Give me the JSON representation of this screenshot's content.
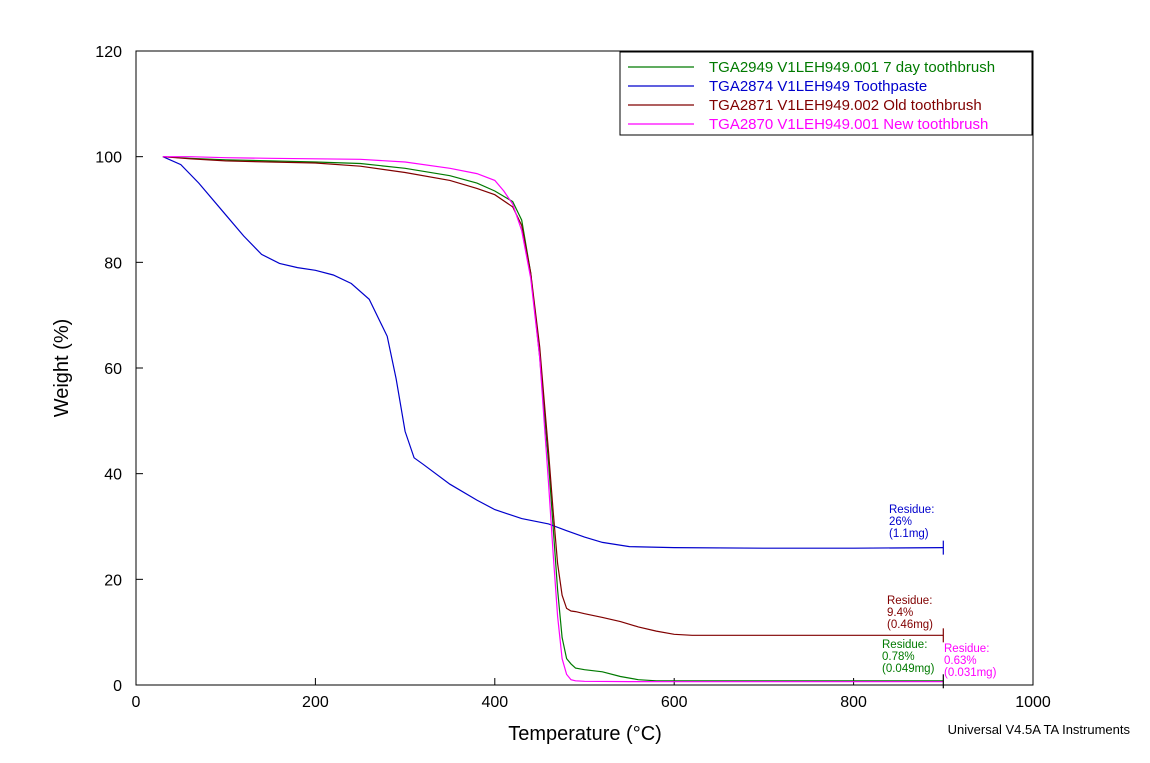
{
  "chart_data": {
    "type": "line",
    "xlabel": "Temperature (°C)",
    "ylabel": "Weight (%)",
    "xlim": [
      0,
      1000
    ],
    "ylim": [
      0,
      120
    ],
    "xticks": [
      0,
      200,
      400,
      600,
      800,
      1000
    ],
    "yticks": [
      0,
      20,
      40,
      60,
      80,
      100,
      120
    ],
    "grid": false,
    "legend_position": "top-right",
    "footer": "Universal V4.5A TA Instruments",
    "series": [
      {
        "name": "TGA2949 V1LEH949.001  7 day toothbrush",
        "color": "#007a00",
        "x": [
          30,
          60,
          100,
          150,
          200,
          250,
          300,
          350,
          380,
          400,
          420,
          430,
          440,
          450,
          455,
          460,
          465,
          470,
          475,
          480,
          485,
          490,
          500,
          520,
          540,
          560,
          580,
          600,
          700,
          800,
          900
        ],
        "y": [
          100,
          99.7,
          99.4,
          99.2,
          99.0,
          98.7,
          97.8,
          96.4,
          95.0,
          93.5,
          91.5,
          88,
          78,
          62,
          52,
          42,
          30,
          18,
          9,
          5,
          4,
          3.2,
          2.9,
          2.5,
          1.6,
          1.0,
          0.8,
          0.8,
          0.8,
          0.78,
          0.78
        ]
      },
      {
        "name": "TGA2874 V1LEH949  Toothpaste",
        "color": "#0000cc",
        "x": [
          30,
          50,
          70,
          100,
          120,
          140,
          160,
          180,
          200,
          220,
          240,
          260,
          280,
          290,
          300,
          310,
          320,
          350,
          380,
          400,
          430,
          460,
          480,
          500,
          520,
          550,
          600,
          700,
          800,
          900
        ],
        "y": [
          100,
          98.5,
          95,
          89,
          85,
          81.5,
          79.8,
          79,
          78.5,
          77.6,
          76,
          73,
          66,
          58,
          48,
          43,
          41.8,
          38,
          35,
          33.2,
          31.5,
          30.5,
          29.2,
          28,
          27,
          26.2,
          26.0,
          25.9,
          25.9,
          26
        ]
      },
      {
        "name": "TGA2871 V1LEH949.002  Old toothbrush",
        "color": "#800000",
        "x": [
          30,
          60,
          100,
          150,
          200,
          250,
          300,
          350,
          380,
          400,
          420,
          430,
          440,
          450,
          455,
          460,
          465,
          470,
          475,
          480,
          485,
          490,
          500,
          520,
          540,
          560,
          580,
          600,
          620,
          700,
          800,
          900
        ],
        "y": [
          100,
          99.6,
          99.2,
          99.0,
          98.8,
          98.2,
          97.0,
          95.5,
          94.0,
          92.8,
          90.5,
          87,
          78,
          64,
          54,
          44,
          33,
          23,
          17,
          14.5,
          14,
          13.9,
          13.5,
          12.8,
          12.0,
          11.0,
          10.2,
          9.6,
          9.4,
          9.4,
          9.4,
          9.4
        ]
      },
      {
        "name": "TGA2870 V1LEH949.001  New toothbrush",
        "color": "#ff00ff",
        "x": [
          30,
          60,
          100,
          150,
          200,
          250,
          300,
          350,
          380,
          400,
          410,
          420,
          430,
          440,
          450,
          455,
          460,
          465,
          470,
          475,
          480,
          485,
          490,
          500,
          550,
          600,
          700,
          800,
          900
        ],
        "y": [
          100,
          100,
          99.8,
          99.7,
          99.6,
          99.5,
          99.0,
          97.8,
          96.8,
          95.5,
          93.5,
          91,
          86,
          77,
          62,
          50,
          38,
          25,
          13,
          5,
          2,
          1,
          0.8,
          0.7,
          0.65,
          0.63,
          0.63,
          0.63,
          0.63
        ]
      }
    ],
    "annotations": [
      {
        "color": "#0000cc",
        "lines": [
          "Residue:",
          "26%",
          "(1.1mg)"
        ],
        "at": [
          838,
          26
        ]
      },
      {
        "color": "#800000",
        "lines": [
          "Residue:",
          "9.4%",
          "(0.46mg)"
        ],
        "at": [
          838,
          9.4
        ]
      },
      {
        "color": "#007a00",
        "lines": [
          "Residue:",
          "0.78%",
          "(0.049mg)"
        ],
        "at": [
          830,
          0.78
        ]
      },
      {
        "color": "#ff00ff",
        "lines": [
          "Residue:",
          "0.63%",
          "(0.031mg)"
        ],
        "at": [
          900,
          0.63
        ]
      }
    ]
  }
}
